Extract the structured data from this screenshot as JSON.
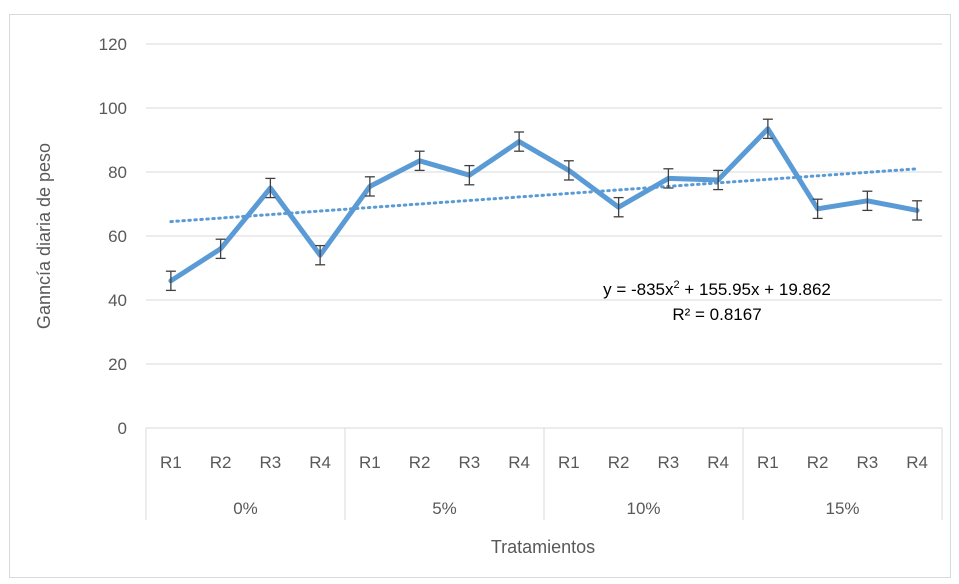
{
  "chart_data": {
    "type": "line",
    "xlabel": "Tratamientos",
    "ylabel": "Ganncía diaria de peso",
    "ylim": [
      0,
      120
    ],
    "yticks": [
      0,
      20,
      40,
      60,
      80,
      100,
      120
    ],
    "grid": true,
    "groups": [
      {
        "label": "0%",
        "categories": [
          "R1",
          "R2",
          "R3",
          "R4"
        ]
      },
      {
        "label": "5%",
        "categories": [
          "R1",
          "R2",
          "R3",
          "R4"
        ]
      },
      {
        "label": "10%",
        "categories": [
          "R1",
          "R2",
          "R3",
          "R4"
        ]
      },
      {
        "label": "15%",
        "categories": [
          "R1",
          "R2",
          "R3",
          "R4"
        ]
      }
    ],
    "series": [
      {
        "values": [
          46,
          56,
          75,
          54,
          75.5,
          83.5,
          79,
          89.5,
          80.5,
          69,
          78,
          77.5,
          93.5,
          68.5,
          71,
          68
        ],
        "error": 3,
        "color": "#5b9bd5"
      }
    ],
    "trendline": {
      "type": "polynomial",
      "start": 64.5,
      "end": 81,
      "equation_prefix": "y = -835x",
      "equation_sup": "2",
      "equation_suffix": " + 155.95x + 19.862",
      "r_squared": "R² = 0.8167",
      "color": "#5b9bd5"
    },
    "colors": {
      "grid": "#d9d9d9",
      "axis_text": "#595959",
      "error_bar": "#404040"
    }
  }
}
